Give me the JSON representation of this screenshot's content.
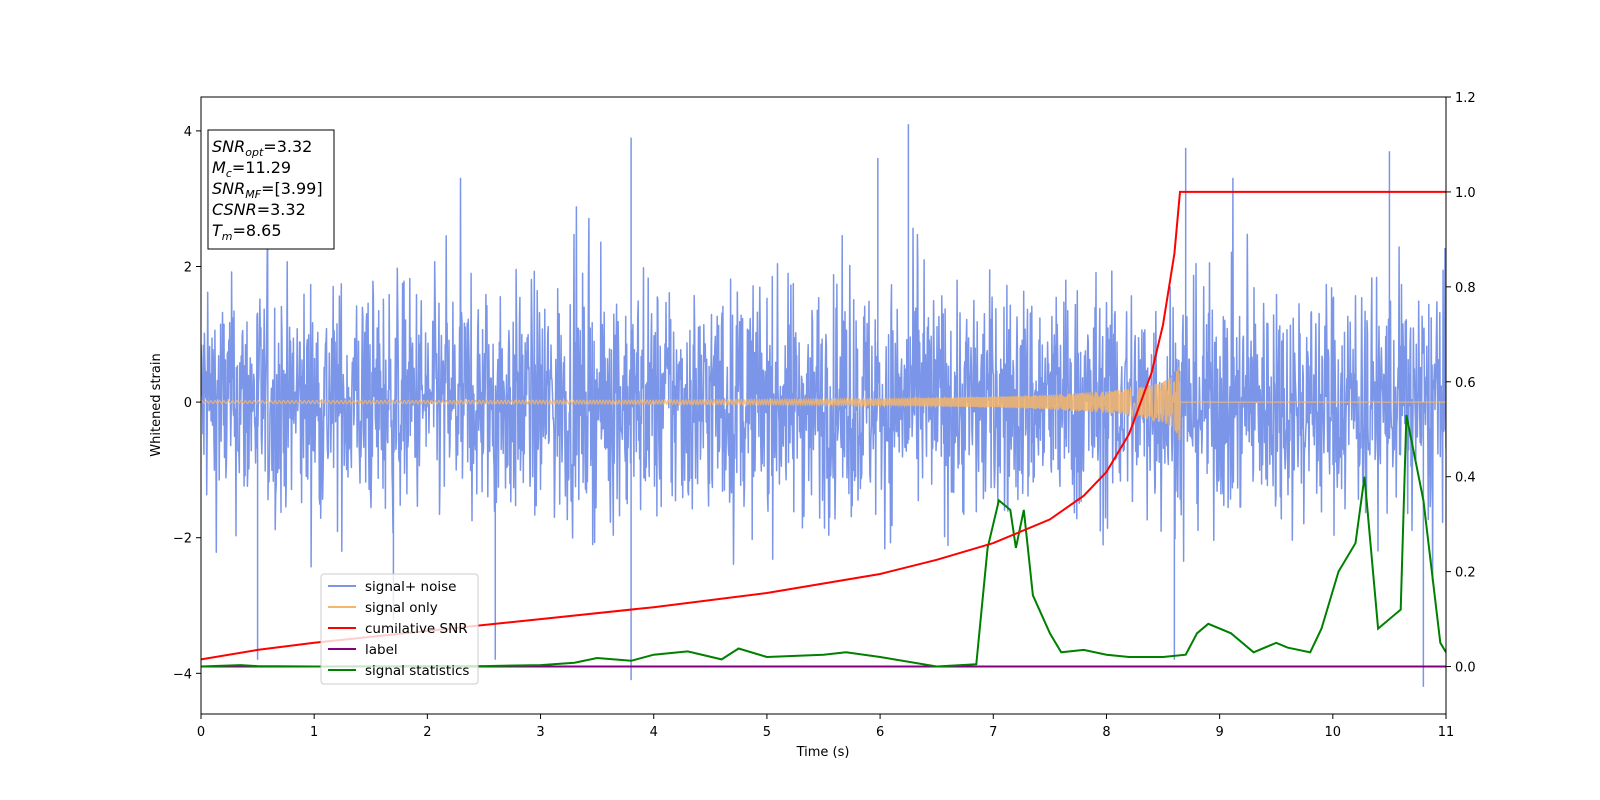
{
  "chart_data": {
    "type": "line",
    "xlabel": "Time (s)",
    "ylabel": "Whitened strain",
    "xlim": [
      0,
      11
    ],
    "ylim": [
      -4.6,
      4.5
    ],
    "y2lim": [
      -0.1,
      1.2
    ],
    "x_ticks": [
      "0",
      "1",
      "2",
      "3",
      "4",
      "5",
      "6",
      "7",
      "8",
      "9",
      "10",
      "11"
    ],
    "y_ticks": [
      "-4",
      "-2",
      "0",
      "2",
      "4"
    ],
    "y2_ticks": [
      "0.0",
      "0.2",
      "0.4",
      "0.6",
      "0.8",
      "1.0",
      "1.2"
    ],
    "grid": false,
    "legend_position": "lower-left",
    "series": [
      {
        "name": "signal+ noise",
        "color": "#7b96e8",
        "axis": "left",
        "description_values": {
          "mean": 0,
          "typical_range": [
            -2.5,
            2.5
          ],
          "max_peak": 4.1,
          "min_trough": -4.2
        },
        "peaks": [
          [
            0.5,
            -3.8
          ],
          [
            1.7,
            -3.2
          ],
          [
            2.6,
            -3.8
          ],
          [
            3.8,
            3.9
          ],
          [
            3.8,
            -4.1
          ],
          [
            5.98,
            3.6
          ],
          [
            6.25,
            4.1
          ],
          [
            8.7,
            3.75
          ],
          [
            8.6,
            -3.8
          ],
          [
            10.5,
            3.7
          ],
          [
            10.8,
            -4.2
          ]
        ]
      },
      {
        "name": "signal only",
        "color": "#f5b56a",
        "axis": "left",
        "x": [
          0,
          4,
          6,
          7,
          7.5,
          8,
          8.3,
          8.5,
          8.6,
          8.65,
          8.66,
          11
        ],
        "amplitude": [
          0.02,
          0.03,
          0.05,
          0.08,
          0.11,
          0.16,
          0.22,
          0.3,
          0.4,
          0.6,
          0,
          0
        ]
      },
      {
        "name": "cumilative SNR",
        "color": "#ff0000",
        "axis": "right",
        "x": [
          0,
          0.5,
          1,
          2,
          3,
          4,
          5,
          6,
          6.5,
          7,
          7.5,
          7.8,
          8,
          8.2,
          8.4,
          8.5,
          8.6,
          8.65,
          11
        ],
        "y": [
          0.015,
          0.035,
          0.05,
          0.075,
          0.1,
          0.125,
          0.155,
          0.195,
          0.225,
          0.26,
          0.31,
          0.36,
          0.41,
          0.49,
          0.62,
          0.72,
          0.87,
          1.0,
          1.0
        ]
      },
      {
        "name": "label",
        "color": "#800080",
        "axis": "right",
        "x": [
          0,
          11
        ],
        "y": [
          0,
          0
        ]
      },
      {
        "name": "signal statistics",
        "color": "#008000",
        "axis": "right",
        "x": [
          0,
          0.35,
          0.5,
          1,
          2,
          2.5,
          3,
          3.3,
          3.5,
          3.8,
          4,
          4.3,
          4.6,
          4.75,
          5,
          5.5,
          5.7,
          6,
          6.5,
          6.85,
          6.95,
          7.05,
          7.15,
          7.2,
          7.27,
          7.35,
          7.5,
          7.6,
          7.8,
          8,
          8.2,
          8.5,
          8.7,
          8.8,
          8.9,
          9.1,
          9.3,
          9.5,
          9.6,
          9.8,
          9.9,
          10.05,
          10.2,
          10.28,
          10.4,
          10.6,
          10.65,
          10.8,
          10.95,
          11
        ],
        "y": [
          0,
          0.003,
          0.001,
          0,
          0.001,
          0.001,
          0.003,
          0.008,
          0.018,
          0.012,
          0.025,
          0.032,
          0.015,
          0.038,
          0.02,
          0.025,
          0.03,
          0.02,
          0,
          0.005,
          0.25,
          0.35,
          0.33,
          0.25,
          0.33,
          0.15,
          0.07,
          0.03,
          0.035,
          0.025,
          0.02,
          0.02,
          0.025,
          0.07,
          0.09,
          0.07,
          0.03,
          0.05,
          0.04,
          0.03,
          0.08,
          0.2,
          0.26,
          0.4,
          0.08,
          0.12,
          0.53,
          0.35,
          0.05,
          0.03
        ]
      }
    ],
    "annotations": {
      "info_box": [
        {
          "base": "SNR",
          "sub": "opt",
          "value": "=3.32"
        },
        {
          "base": "M",
          "sub": "c",
          "value": "=11.29"
        },
        {
          "base": "SNR",
          "sub": "MF",
          "value": "=[3.99]"
        },
        {
          "base": "CSNR",
          "sub": "",
          "value": "=3.32"
        },
        {
          "base": "T",
          "sub": "m",
          "value": "=8.65"
        }
      ]
    }
  }
}
